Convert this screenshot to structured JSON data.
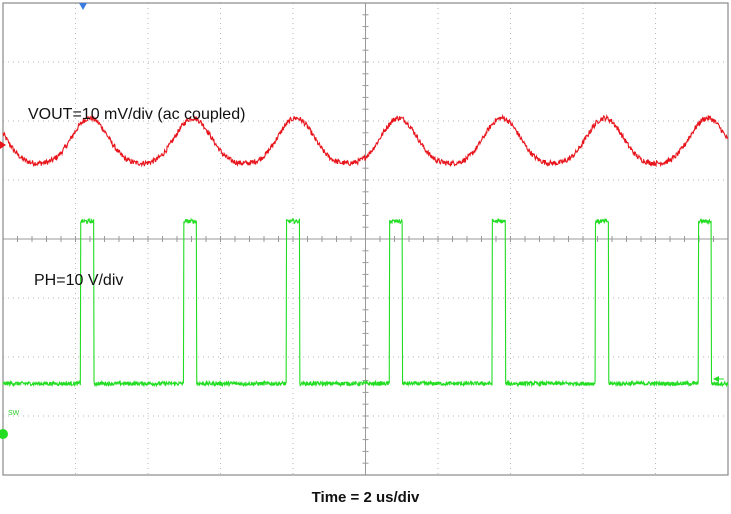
{
  "chart_data": {
    "type": "line",
    "title": "",
    "xlabel": "Time = 2 us/div",
    "ylabel": "",
    "grid": true,
    "grid_divisions": {
      "x": 10,
      "y": 8
    },
    "x_unit": "us",
    "xlim": [
      0,
      20
    ],
    "series": [
      {
        "name": "VOUT",
        "channel_label": "VOUT=10 mV/div (ac coupled)",
        "color": "#e8141c",
        "scale": "10 mV/div",
        "coupling": "ac",
        "period_us": 2.84,
        "amplitude_div": 0.45,
        "center_div": 1.6,
        "first_trough_us": 2.4
      },
      {
        "name": "PH",
        "channel_label": "PH=10 V/div",
        "color": "#22dd22",
        "scale": "10 V/div",
        "period_us": 2.84,
        "pulse_width_us": 0.36,
        "low_level_div": -2.45,
        "high_level_div": 0.3,
        "first_rise_us": 2.14
      }
    ]
  },
  "markers": {
    "sw_tag": "SW",
    "trigger_color": "#3a7be0"
  }
}
